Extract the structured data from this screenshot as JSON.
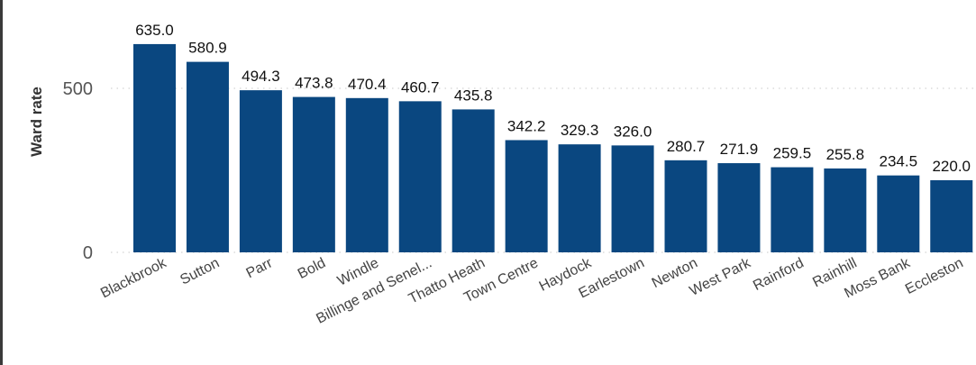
{
  "chart_data": {
    "type": "bar",
    "ylabel": "Ward rate",
    "xlabel": "",
    "ylim": [
      0,
      650
    ],
    "yticks": [
      "0",
      "500"
    ],
    "grid": "horizontal dotted at ticks",
    "bar_color": "#0a4780",
    "categories": [
      "Blackbrook",
      "Sutton",
      "Parr",
      "Bold",
      "Windle",
      "Billinge and Senel...",
      "Thatto Heath",
      "Town Centre",
      "Haydock",
      "Earlestown",
      "Newton",
      "West Park",
      "Rainford",
      "Rainhill",
      "Moss Bank",
      "Eccleston"
    ],
    "values": [
      635.0,
      580.9,
      494.3,
      473.8,
      470.4,
      460.7,
      435.8,
      342.2,
      329.3,
      326.0,
      280.7,
      271.9,
      259.5,
      255.8,
      234.5,
      220.0
    ],
    "data_labels": [
      "635.0",
      "580.9",
      "494.3",
      "473.8",
      "470.4",
      "460.7",
      "435.8",
      "342.2",
      "329.3",
      "326.0",
      "280.7",
      "271.9",
      "259.5",
      "255.8",
      "234.5",
      "220.0"
    ]
  }
}
